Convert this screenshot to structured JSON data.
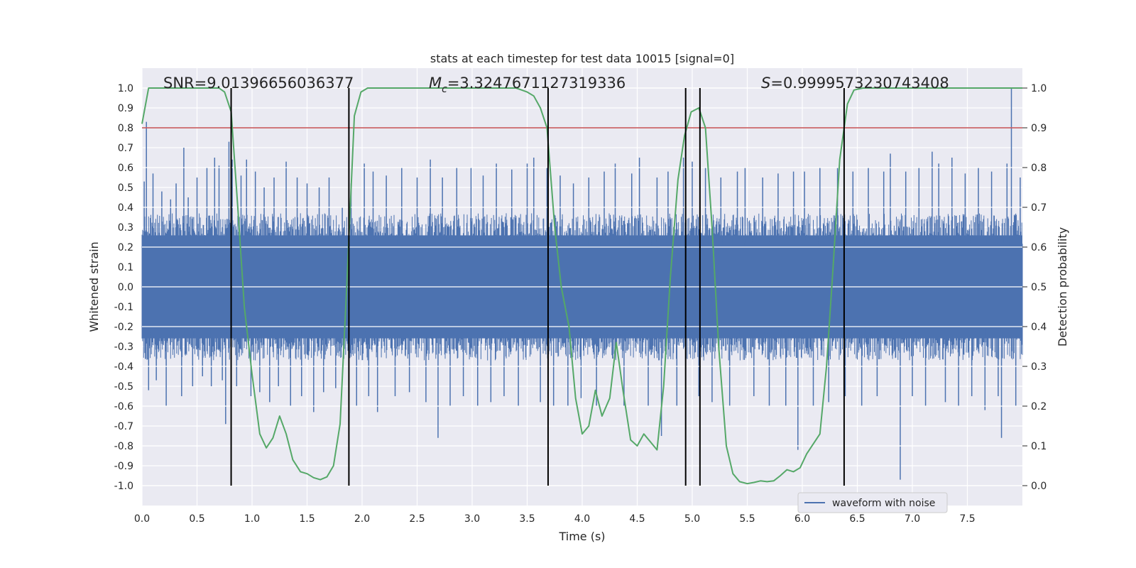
{
  "chart_data": {
    "type": "line",
    "title": "stats at each timestep for test data 10015 [signal=0]",
    "xlabel": "Time (s)",
    "ylabel": "Whitened strain",
    "y2label": "Detection probability",
    "xlim": [
      0.0,
      8.0
    ],
    "ylim": [
      -1.1,
      1.1
    ],
    "y2lim": [
      -0.05,
      1.05
    ],
    "xticks": [
      "0.0",
      "0.5",
      "1.0",
      "1.5",
      "2.0",
      "2.5",
      "3.0",
      "3.5",
      "4.0",
      "4.5",
      "5.0",
      "5.5",
      "6.0",
      "6.5",
      "7.0",
      "7.5"
    ],
    "yticks": [
      "1.0",
      "0.9",
      "0.8",
      "0.7",
      "0.6",
      "0.5",
      "0.4",
      "0.3",
      "0.2",
      "0.1",
      "0.0",
      "-0.1",
      "-0.2",
      "-0.3",
      "-0.4",
      "-0.5",
      "-0.6",
      "-0.7",
      "-0.8",
      "-0.9",
      "-1.0"
    ],
    "y2ticks": [
      "1.0",
      "0.9",
      "0.8",
      "0.7",
      "0.6",
      "0.5",
      "0.4",
      "0.3",
      "0.2",
      "0.1",
      "0.0"
    ],
    "grid": true,
    "legend": {
      "position": "lower-right",
      "entries": [
        "waveform with noise"
      ]
    },
    "annotations": {
      "snr": "SNR=9.01396656036377",
      "mc_symbol": "M",
      "mc_sub": "c",
      "mc_value": "=3.3247671127319336",
      "s_symbol": "S",
      "s_value": "=0.9999573230743408"
    },
    "threshold": {
      "value": 0.9,
      "axis": "y2",
      "color": "#c44e52"
    },
    "detection_boundaries": [
      0.81,
      1.88,
      3.69,
      4.94,
      5.07,
      6.38
    ],
    "series": [
      {
        "name": "waveform with noise",
        "axis": "y",
        "color": "#4c72b0",
        "envelope": {
          "dense_amplitude": 0.37,
          "spikes": [
            [
              0.02,
              0.53
            ],
            [
              0.04,
              0.83
            ],
            [
              0.06,
              -0.52
            ],
            [
              0.1,
              0.57
            ],
            [
              0.13,
              -0.47
            ],
            [
              0.18,
              0.48
            ],
            [
              0.22,
              -0.6
            ],
            [
              0.26,
              0.44
            ],
            [
              0.31,
              0.52
            ],
            [
              0.36,
              -0.55
            ],
            [
              0.38,
              0.7
            ],
            [
              0.42,
              0.45
            ],
            [
              0.46,
              -0.5
            ],
            [
              0.5,
              0.55
            ],
            [
              0.55,
              -0.45
            ],
            [
              0.59,
              0.6
            ],
            [
              0.63,
              -0.5
            ],
            [
              0.66,
              0.65
            ],
            [
              0.7,
              0.61
            ],
            [
              0.73,
              -0.47
            ],
            [
              0.76,
              -0.69
            ],
            [
              0.79,
              0.73
            ],
            [
              0.82,
              0.64
            ],
            [
              0.86,
              -0.5
            ],
            [
              0.9,
              0.56
            ],
            [
              0.95,
              0.64
            ],
            [
              0.99,
              -0.55
            ],
            [
              1.03,
              0.58
            ],
            [
              1.07,
              -0.53
            ],
            [
              1.11,
              0.5
            ],
            [
              1.16,
              -0.58
            ],
            [
              1.2,
              0.55
            ],
            [
              1.24,
              -0.5
            ],
            [
              1.31,
              0.63
            ],
            [
              1.35,
              -0.6
            ],
            [
              1.41,
              0.55
            ],
            [
              1.45,
              -0.55
            ],
            [
              1.5,
              0.52
            ],
            [
              1.56,
              -0.63
            ],
            [
              1.61,
              0.5
            ],
            [
              1.65,
              -0.53
            ],
            [
              1.7,
              0.55
            ],
            [
              1.76,
              -0.51
            ],
            [
              1.82,
              0.4
            ],
            [
              1.9,
              0.52
            ],
            [
              1.95,
              -0.6
            ],
            [
              2.02,
              0.62
            ],
            [
              2.06,
              -0.55
            ],
            [
              2.1,
              0.58
            ],
            [
              2.14,
              -0.63
            ],
            [
              2.22,
              0.56
            ],
            [
              2.3,
              -0.55
            ],
            [
              2.36,
              0.6
            ],
            [
              2.43,
              -0.53
            ],
            [
              2.5,
              0.55
            ],
            [
              2.58,
              -0.58
            ],
            [
              2.62,
              0.64
            ],
            [
              2.69,
              -0.76
            ],
            [
              2.73,
              0.55
            ],
            [
              2.8,
              -0.6
            ],
            [
              2.86,
              0.6
            ],
            [
              2.92,
              -0.55
            ],
            [
              2.99,
              0.6
            ],
            [
              3.05,
              -0.6
            ],
            [
              3.1,
              0.56
            ],
            [
              3.17,
              -0.58
            ],
            [
              3.22,
              0.62
            ],
            [
              3.29,
              -0.55
            ],
            [
              3.36,
              0.59
            ],
            [
              3.42,
              -0.6
            ],
            [
              3.5,
              0.62
            ],
            [
              3.56,
              0.65
            ],
            [
              3.62,
              -0.58
            ],
            [
              3.68,
              0.6
            ],
            [
              3.74,
              -0.6
            ],
            [
              3.8,
              0.56
            ],
            [
              3.87,
              -0.6
            ],
            [
              3.92,
              0.52
            ],
            [
              3.99,
              -0.56
            ],
            [
              4.06,
              0.55
            ],
            [
              4.13,
              -0.6
            ],
            [
              4.2,
              0.58
            ],
            [
              4.3,
              0.62
            ],
            [
              4.38,
              -0.6
            ],
            [
              4.45,
              0.57
            ],
            [
              4.52,
              0.65
            ],
            [
              4.6,
              -0.6
            ],
            [
              4.68,
              0.55
            ],
            [
              4.72,
              -0.75
            ],
            [
              4.78,
              0.58
            ],
            [
              4.86,
              -0.6
            ],
            [
              4.92,
              0.65
            ],
            [
              5.0,
              0.63
            ],
            [
              5.06,
              -0.55
            ],
            [
              5.12,
              0.6
            ],
            [
              5.18,
              -0.58
            ],
            [
              5.26,
              0.55
            ],
            [
              5.34,
              -0.6
            ],
            [
              5.41,
              0.58
            ],
            [
              5.48,
              0.6
            ],
            [
              5.56,
              -0.55
            ],
            [
              5.64,
              0.55
            ],
            [
              5.7,
              -0.6
            ],
            [
              5.78,
              0.57
            ],
            [
              5.85,
              -0.6
            ],
            [
              5.92,
              0.58
            ],
            [
              5.96,
              -0.82
            ],
            [
              6.02,
              0.58
            ],
            [
              6.1,
              -0.6
            ],
            [
              6.16,
              0.6
            ],
            [
              6.24,
              -0.58
            ],
            [
              6.32,
              0.6
            ],
            [
              6.39,
              -0.55
            ],
            [
              6.46,
              0.58
            ],
            [
              6.54,
              -0.6
            ],
            [
              6.6,
              0.6
            ],
            [
              6.68,
              -0.55
            ],
            [
              6.74,
              0.58
            ],
            [
              6.8,
              0.67
            ],
            [
              6.89,
              -0.97
            ],
            [
              6.94,
              0.58
            ],
            [
              7.0,
              -0.55
            ],
            [
              7.06,
              0.6
            ],
            [
              7.12,
              -0.6
            ],
            [
              7.18,
              0.68
            ],
            [
              7.24,
              0.62
            ],
            [
              7.3,
              -0.58
            ],
            [
              7.36,
              0.65
            ],
            [
              7.42,
              -0.6
            ],
            [
              7.48,
              0.57
            ],
            [
              7.54,
              -0.55
            ],
            [
              7.6,
              0.6
            ],
            [
              7.66,
              -0.62
            ],
            [
              7.72,
              0.58
            ],
            [
              7.78,
              -0.55
            ],
            [
              7.81,
              -0.76
            ],
            [
              7.86,
              0.62
            ],
            [
              7.9,
              1.0
            ],
            [
              7.94,
              -0.6
            ],
            [
              7.98,
              0.55
            ]
          ]
        }
      },
      {
        "name": "detection probability",
        "axis": "y2",
        "color": "#55a868",
        "points": [
          [
            0.0,
            0.91
          ],
          [
            0.06,
            1.0
          ],
          [
            0.15,
            1.0
          ],
          [
            0.3,
            1.0
          ],
          [
            0.5,
            1.0
          ],
          [
            0.7,
            1.0
          ],
          [
            0.75,
            0.99
          ],
          [
            0.81,
            0.94
          ],
          [
            0.87,
            0.7
          ],
          [
            0.93,
            0.45
          ],
          [
            1.0,
            0.28
          ],
          [
            1.07,
            0.13
          ],
          [
            1.13,
            0.095
          ],
          [
            1.19,
            0.12
          ],
          [
            1.25,
            0.175
          ],
          [
            1.31,
            0.13
          ],
          [
            1.37,
            0.065
          ],
          [
            1.44,
            0.035
          ],
          [
            1.5,
            0.03
          ],
          [
            1.56,
            0.02
          ],
          [
            1.62,
            0.015
          ],
          [
            1.68,
            0.022
          ],
          [
            1.74,
            0.05
          ],
          [
            1.8,
            0.155
          ],
          [
            1.86,
            0.5
          ],
          [
            1.93,
            0.93
          ],
          [
            1.99,
            0.99
          ],
          [
            2.05,
            1.0
          ],
          [
            2.2,
            1.0
          ],
          [
            2.4,
            1.0
          ],
          [
            2.6,
            1.0
          ],
          [
            2.8,
            1.0
          ],
          [
            3.0,
            1.0
          ],
          [
            3.2,
            1.0
          ],
          [
            3.4,
            1.0
          ],
          [
            3.5,
            0.99
          ],
          [
            3.56,
            0.98
          ],
          [
            3.62,
            0.95
          ],
          [
            3.68,
            0.9
          ],
          [
            3.75,
            0.65
          ],
          [
            3.81,
            0.5
          ],
          [
            3.88,
            0.4
          ],
          [
            3.94,
            0.22
          ],
          [
            4.0,
            0.13
          ],
          [
            4.06,
            0.15
          ],
          [
            4.12,
            0.24
          ],
          [
            4.18,
            0.175
          ],
          [
            4.25,
            0.22
          ],
          [
            4.31,
            0.36
          ],
          [
            4.37,
            0.24
          ],
          [
            4.44,
            0.115
          ],
          [
            4.5,
            0.1
          ],
          [
            4.56,
            0.13
          ],
          [
            4.62,
            0.11
          ],
          [
            4.68,
            0.09
          ],
          [
            4.74,
            0.25
          ],
          [
            4.8,
            0.52
          ],
          [
            4.87,
            0.77
          ],
          [
            4.93,
            0.88
          ],
          [
            4.99,
            0.94
          ],
          [
            5.06,
            0.95
          ],
          [
            5.12,
            0.9
          ],
          [
            5.18,
            0.65
          ],
          [
            5.24,
            0.35
          ],
          [
            5.31,
            0.1
          ],
          [
            5.37,
            0.03
          ],
          [
            5.43,
            0.01
          ],
          [
            5.5,
            0.005
          ],
          [
            5.56,
            0.008
          ],
          [
            5.62,
            0.012
          ],
          [
            5.68,
            0.01
          ],
          [
            5.74,
            0.012
          ],
          [
            5.8,
            0.025
          ],
          [
            5.86,
            0.04
          ],
          [
            5.92,
            0.035
          ],
          [
            5.98,
            0.045
          ],
          [
            6.04,
            0.08
          ],
          [
            6.1,
            0.105
          ],
          [
            6.16,
            0.13
          ],
          [
            6.22,
            0.3
          ],
          [
            6.28,
            0.55
          ],
          [
            6.34,
            0.82
          ],
          [
            6.41,
            0.96
          ],
          [
            6.47,
            0.995
          ],
          [
            6.55,
            1.0
          ],
          [
            6.8,
            1.0
          ],
          [
            7.0,
            1.0
          ],
          [
            7.3,
            1.0
          ],
          [
            7.6,
            1.0
          ],
          [
            8.0,
            1.0
          ]
        ]
      }
    ]
  }
}
